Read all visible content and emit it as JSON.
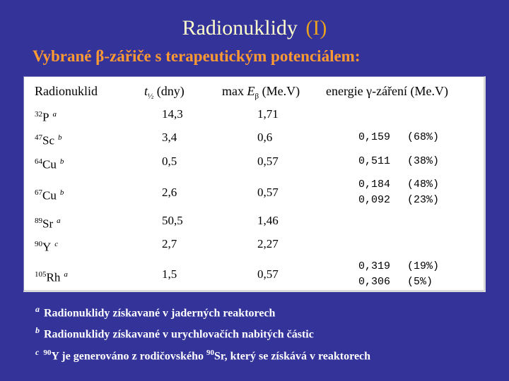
{
  "header": {
    "title": "Radionuklidy",
    "title_tag": "(I)",
    "subtitle": "Vybrané β-zářiče s terapeutickým potenciálem:"
  },
  "table": {
    "columns": {
      "radionuklid": "Radionuklid",
      "t_label": "t",
      "t_sub": "½",
      "t_unit": "(dny)",
      "max_prefix": "max",
      "max_label": "E",
      "max_sub": "β",
      "max_unit": "(Me.V)",
      "gamma": "energie γ-záření (Me.V)"
    },
    "rows": [
      {
        "mass": "32",
        "el": "P",
        "note": "a",
        "t": "14,3",
        "e": "1,71",
        "g1": "",
        "g2": "",
        "p1": "",
        "p2": ""
      },
      {
        "mass": "47",
        "el": "Sc",
        "note": "b",
        "t": "3,4",
        "e": "0,6",
        "g1": "0,159",
        "g2": "",
        "p1": "(68%)",
        "p2": ""
      },
      {
        "mass": "64",
        "el": "Cu",
        "note": "b",
        "t": "0,5",
        "e": "0,57",
        "g1": "0,511",
        "g2": "",
        "p1": "(38%)",
        "p2": ""
      },
      {
        "mass": "67",
        "el": "Cu",
        "note": "b",
        "t": "2,6",
        "e": "0,57",
        "g1": "0,184",
        "g2": "0,092",
        "p1": "(48%)",
        "p2": "(23%)"
      },
      {
        "mass": "89",
        "el": "Sr",
        "note": "a",
        "t": "50,5",
        "e": "1,46",
        "g1": "",
        "g2": "",
        "p1": "",
        "p2": ""
      },
      {
        "mass": "90",
        "el": "Y",
        "note": "c",
        "t": "2,7",
        "e": "2,27",
        "g1": "",
        "g2": "",
        "p1": "",
        "p2": ""
      },
      {
        "mass": "105",
        "el": "Rh",
        "note": "a",
        "t": "1,5",
        "e": "0,57",
        "g1": "0,319",
        "g2": "0,306",
        "p1": "(19%)",
        "p2": "(5%)"
      }
    ]
  },
  "footnotes": {
    "a_mark": "a",
    "a_text": "Radionuklidy získavané v jaderných reaktorech",
    "b_mark": "b",
    "b_text": "Radionuklidy získavané v urychlovačích nabitých částic",
    "c_mark": "c",
    "c_mass1": "90",
    "c_el1": "Y",
    "c_mid": "je generováno z rodičovského",
    "c_mass2": "90",
    "c_el2": "Sr,",
    "c_end": "který se získává v reaktorech"
  }
}
